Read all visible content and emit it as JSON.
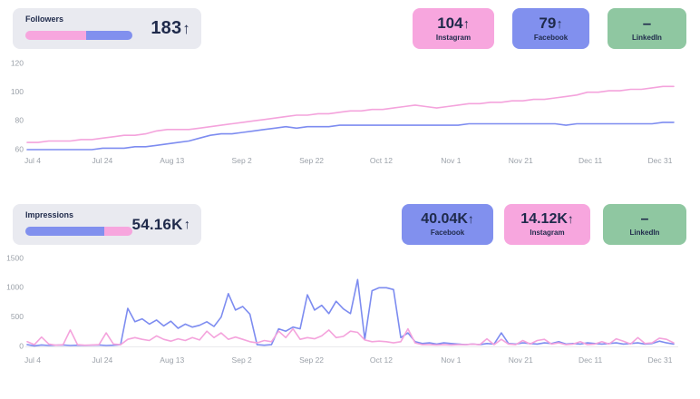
{
  "colors": {
    "instagram": "#F7A6DE",
    "facebook": "#8190EE",
    "linkedin": "#8FC7A1",
    "line_instagram": "#F4A3DC",
    "line_facebook": "#7D8CF0",
    "summary_bg": "#E9EAF0",
    "text_dark": "#1F2A4B",
    "axis_label": "#9BA1A9"
  },
  "sections": [
    {
      "summary": {
        "label": "Followers",
        "value": "183",
        "arrow": "↑",
        "bar": [
          {
            "color_key": "instagram",
            "pct": 57
          },
          {
            "color_key": "facebook",
            "pct": 43
          }
        ]
      },
      "cards": [
        {
          "value": "104",
          "arrow": "↑",
          "label": "Instagram",
          "color_key": "instagram"
        },
        {
          "value": "79",
          "arrow": "↑",
          "label": "Facebook",
          "color_key": "facebook"
        },
        {
          "value": "–",
          "arrow": "",
          "label": "LinkedIn",
          "color_key": "linkedin"
        }
      ]
    },
    {
      "summary": {
        "label": "Impressions",
        "value": "54.16K",
        "arrow": "↑",
        "bar": [
          {
            "color_key": "facebook",
            "pct": 74
          },
          {
            "color_key": "instagram",
            "pct": 26
          }
        ]
      },
      "cards": [
        {
          "value": "40.04K",
          "arrow": "↑",
          "label": "Facebook",
          "color_key": "facebook"
        },
        {
          "value": "14.12K",
          "arrow": "↑",
          "label": "Instagram",
          "color_key": "instagram"
        },
        {
          "value": "–",
          "arrow": "",
          "label": "LinkedIn",
          "color_key": "linkedin"
        }
      ]
    }
  ],
  "chart_data": [
    {
      "type": "line",
      "name": "Followers",
      "x_ticks": [
        "Jul 4",
        "Jul 24",
        "Aug 13",
        "Sep 2",
        "Sep 22",
        "Oct 12",
        "Nov 1",
        "Nov 21",
        "Dec 11",
        "Dec 31"
      ],
      "y_ticks": [
        120,
        100,
        80,
        60
      ],
      "ylim": [
        60,
        120
      ],
      "grid": false,
      "baseline": false,
      "legend": "none",
      "series": [
        {
          "name": "Facebook",
          "color_key": "facebook",
          "values": [
            60,
            60,
            60,
            60,
            60,
            60,
            60,
            61,
            61,
            61,
            62,
            62,
            63,
            64,
            65,
            66,
            68,
            70,
            71,
            71,
            72,
            73,
            74,
            75,
            76,
            75,
            76,
            76,
            76,
            77,
            77,
            77,
            77,
            77,
            77,
            77,
            77,
            77,
            77,
            77,
            77,
            78,
            78,
            78,
            78,
            78,
            78,
            78,
            78,
            78,
            77,
            78,
            78,
            78,
            78,
            78,
            78,
            78,
            78,
            79,
            79
          ]
        },
        {
          "name": "Instagram",
          "color_key": "instagram",
          "values": [
            65,
            65,
            66,
            66,
            66,
            67,
            67,
            68,
            69,
            70,
            70,
            71,
            73,
            74,
            74,
            74,
            75,
            76,
            77,
            78,
            79,
            80,
            81,
            82,
            83,
            84,
            84,
            85,
            85,
            86,
            87,
            87,
            88,
            88,
            89,
            90,
            91,
            90,
            89,
            90,
            91,
            92,
            92,
            93,
            93,
            94,
            94,
            95,
            95,
            96,
            97,
            98,
            100,
            100,
            101,
            101,
            102,
            102,
            103,
            104,
            104
          ]
        }
      ]
    },
    {
      "type": "line",
      "name": "Impressions",
      "x_ticks": [
        "Jul 4",
        "Jul 24",
        "Aug 13",
        "Sep 2",
        "Sep 22",
        "Oct 12",
        "Nov 1",
        "Nov 21",
        "Dec 11",
        "Dec 31"
      ],
      "y_ticks": [
        1500,
        1000,
        500,
        0
      ],
      "ylim": [
        0,
        1500
      ],
      "grid": false,
      "baseline": true,
      "legend": "none",
      "series": [
        {
          "name": "Facebook",
          "color_key": "facebook",
          "values": [
            30,
            10,
            25,
            15,
            20,
            25,
            15,
            20,
            15,
            20,
            25,
            15,
            20,
            30,
            650,
            420,
            470,
            380,
            450,
            350,
            430,
            310,
            380,
            330,
            360,
            420,
            340,
            500,
            900,
            620,
            680,
            550,
            30,
            20,
            30,
            300,
            260,
            330,
            300,
            880,
            620,
            700,
            560,
            770,
            640,
            560,
            1140,
            120,
            950,
            1000,
            1000,
            970,
            150,
            230,
            80,
            50,
            60,
            40,
            60,
            50,
            40,
            30,
            40,
            30,
            50,
            40,
            230,
            50,
            40,
            60,
            50,
            40,
            60,
            50,
            80,
            40,
            50,
            40,
            60,
            50,
            40,
            50,
            60,
            40,
            50,
            60,
            40,
            50,
            90,
            60,
            40
          ]
        },
        {
          "name": "Instagram",
          "color_key": "instagram",
          "values": [
            80,
            30,
            160,
            40,
            20,
            30,
            280,
            30,
            20,
            25,
            30,
            230,
            40,
            30,
            120,
            150,
            120,
            100,
            180,
            120,
            90,
            130,
            100,
            150,
            110,
            260,
            150,
            230,
            120,
            160,
            120,
            80,
            60,
            100,
            80,
            260,
            150,
            300,
            120,
            150,
            130,
            180,
            280,
            150,
            170,
            260,
            240,
            110,
            80,
            90,
            80,
            60,
            80,
            300,
            60,
            30,
            30,
            25,
            30,
            25,
            30,
            30,
            40,
            30,
            130,
            30,
            120,
            40,
            30,
            100,
            40,
            100,
            120,
            40,
            60,
            30,
            40,
            80,
            30,
            40,
            80,
            40,
            130,
            90,
            40,
            150,
            50,
            60,
            140,
            120,
            60
          ]
        }
      ]
    }
  ]
}
